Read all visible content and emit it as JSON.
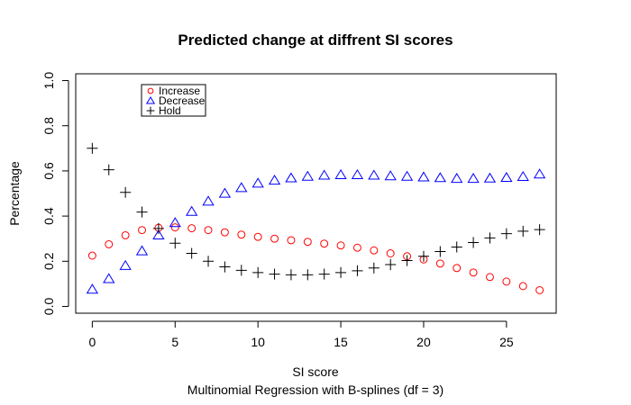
{
  "chart_data": {
    "type": "scatter",
    "title": "Predicted change at diffrent SI scores",
    "xlabel": "SI score",
    "subtitle": "Multinomial Regression with B-splines (df = 3)",
    "ylabel": "Percentage",
    "xlim": [
      -1,
      28
    ],
    "ylim": [
      -0.03,
      1.03
    ],
    "xticks": [
      0,
      5,
      10,
      15,
      20,
      25
    ],
    "yticks": [
      0.0,
      0.2,
      0.4,
      0.6,
      0.8,
      1.0
    ],
    "ytick_labels": [
      "0.0",
      "0.2",
      "0.4",
      "0.6",
      "0.8",
      "1.0"
    ],
    "legend_position": "top-left",
    "x": [
      0,
      1,
      2,
      3,
      4,
      5,
      6,
      7,
      8,
      9,
      10,
      11,
      12,
      13,
      14,
      15,
      16,
      17,
      18,
      19,
      20,
      21,
      22,
      23,
      24,
      25,
      26,
      27
    ],
    "series": [
      {
        "name": "Increase",
        "marker": "circle",
        "color": "#ff0000",
        "values": [
          0.225,
          0.275,
          0.315,
          0.338,
          0.348,
          0.35,
          0.346,
          0.338,
          0.328,
          0.318,
          0.308,
          0.3,
          0.293,
          0.286,
          0.278,
          0.27,
          0.26,
          0.248,
          0.235,
          0.222,
          0.208,
          0.19,
          0.17,
          0.15,
          0.13,
          0.11,
          0.09,
          0.072
        ]
      },
      {
        "name": "Decrease",
        "marker": "triangle",
        "color": "#0000ff",
        "values": [
          0.075,
          0.122,
          0.18,
          0.245,
          0.315,
          0.37,
          0.42,
          0.465,
          0.5,
          0.525,
          0.545,
          0.558,
          0.568,
          0.575,
          0.58,
          0.582,
          0.582,
          0.58,
          0.577,
          0.575,
          0.572,
          0.569,
          0.566,
          0.566,
          0.567,
          0.57,
          0.574,
          0.585
        ]
      },
      {
        "name": "Hold",
        "marker": "plus",
        "color": "#000000",
        "values": [
          0.7,
          0.605,
          0.505,
          0.418,
          0.345,
          0.28,
          0.235,
          0.2,
          0.175,
          0.16,
          0.15,
          0.143,
          0.14,
          0.14,
          0.143,
          0.15,
          0.158,
          0.17,
          0.185,
          0.203,
          0.222,
          0.243,
          0.263,
          0.283,
          0.303,
          0.322,
          0.333,
          0.34
        ]
      }
    ]
  }
}
